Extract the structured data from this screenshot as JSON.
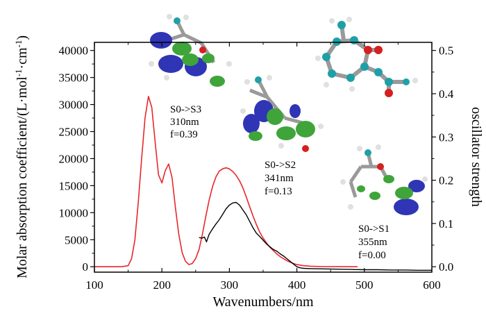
{
  "chart_data": {
    "type": "line",
    "xlabel": "Wavenumbers/nm",
    "ylabel": "Molar absorption coefficient/(L·mol-1·cm-1)",
    "y2label": "oscillator strength",
    "xlim": [
      100,
      600
    ],
    "ylim": [
      -1000,
      41500
    ],
    "y2lim": [
      -0.0125,
      0.5187
    ],
    "x_ticks": [
      100,
      200,
      300,
      400,
      500,
      600
    ],
    "y_ticks": [
      0,
      5000,
      10000,
      15000,
      20000,
      25000,
      30000,
      35000,
      40000
    ],
    "y2_ticks": [
      0.0,
      0.1,
      0.2,
      0.3,
      0.4,
      0.5
    ],
    "x_tick_labels": [
      "100",
      "200",
      "300",
      "400",
      "500",
      "600"
    ],
    "y_tick_labels": [
      "0",
      "5000",
      "10000",
      "15000",
      "20000",
      "25000",
      "30000",
      "35000",
      "40000"
    ],
    "y2_tick_labels": [
      "0.0",
      "0.1",
      "0.2",
      "0.3",
      "0.4",
      "0.5"
    ],
    "grid": false,
    "legend": "none",
    "series": [
      {
        "color": "#e8262b",
        "x": [
          100,
          140,
          150,
          155,
          160,
          165,
          170,
          175,
          180,
          185,
          190,
          195,
          200,
          205,
          210,
          215,
          220,
          225,
          230,
          235,
          240,
          245,
          250,
          255,
          260,
          265,
          270,
          275,
          280,
          285,
          290,
          295,
          300,
          305,
          310,
          315,
          320,
          325,
          330,
          335,
          340,
          345,
          350,
          355,
          360,
          365,
          370,
          375,
          380,
          385,
          390,
          395,
          400,
          410,
          420,
          440,
          460,
          480,
          490
        ],
        "y": [
          0,
          0,
          200,
          1500,
          5000,
          12000,
          20000,
          27500,
          31500,
          29500,
          23000,
          17000,
          15500,
          17800,
          19000,
          16500,
          11000,
          6000,
          2600,
          1000,
          400,
          600,
          1500,
          3200,
          6000,
          9300,
          12300,
          14800,
          16600,
          17700,
          18100,
          18300,
          18100,
          17600,
          16900,
          15900,
          14600,
          12900,
          11100,
          9400,
          7800,
          6400,
          5300,
          4400,
          3600,
          3000,
          2400,
          1900,
          1500,
          1150,
          850,
          600,
          400,
          200,
          100,
          30,
          10,
          0,
          0
        ]
      },
      {
        "color": "#000000",
        "x": [
          255,
          260,
          263,
          266,
          270,
          275,
          280,
          285,
          290,
          295,
          300,
          305,
          310,
          315,
          320,
          325,
          330,
          335,
          340,
          345,
          350,
          355,
          360,
          365,
          370,
          375,
          380,
          385,
          390,
          395,
          400,
          405,
          410,
          420,
          440,
          460,
          480,
          500,
          520,
          540,
          560,
          580,
          600
        ],
        "y": [
          5400,
          5300,
          5500,
          4600,
          6000,
          7000,
          7900,
          8700,
          9700,
          10700,
          11400,
          11800,
          11900,
          11400,
          10500,
          9600,
          8400,
          7200,
          6200,
          5600,
          4900,
          4200,
          3700,
          3200,
          2900,
          2400,
          2000,
          1500,
          1000,
          500,
          0,
          -200,
          -300,
          -350,
          -400,
          -450,
          -500,
          -550,
          -550,
          -600,
          -600,
          -650,
          -650
        ]
      }
    ],
    "annotations": [
      {
        "lines": [
          "S0->S3",
          "310nm",
          "f=0.39"
        ]
      },
      {
        "lines": [
          "S0->S2",
          "341nm",
          "f=0.13"
        ]
      },
      {
        "lines": [
          "S0->S1",
          "355nm",
          "f=0.00"
        ]
      }
    ]
  }
}
